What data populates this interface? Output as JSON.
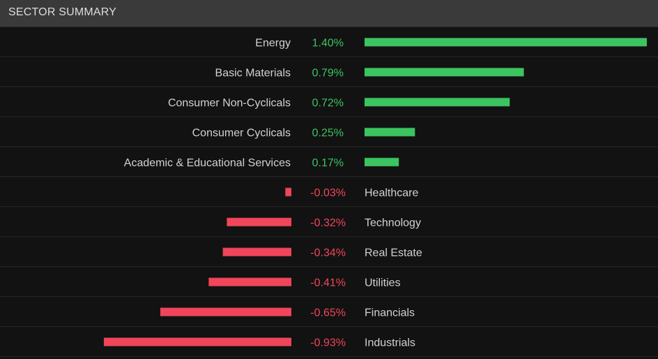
{
  "header": {
    "title": "SECTOR SUMMARY"
  },
  "colors": {
    "positive": "#3cc460",
    "negative": "#f0455a"
  },
  "chart_data": {
    "type": "bar",
    "orientation": "horizontal",
    "title": "SECTOR SUMMARY",
    "categories": [
      "Energy",
      "Basic Materials",
      "Consumer Non-Cyclicals",
      "Consumer Cyclicals",
      "Academic & Educational Services",
      "Healthcare",
      "Technology",
      "Real Estate",
      "Utilities",
      "Financials",
      "Industrials"
    ],
    "values": [
      1.4,
      0.79,
      0.72,
      0.25,
      0.17,
      -0.03,
      -0.32,
      -0.34,
      -0.41,
      -0.65,
      -0.93
    ],
    "value_labels": [
      "1.40%",
      "0.79%",
      "0.72%",
      "0.25%",
      "0.17%",
      "-0.03%",
      "-0.32%",
      "-0.34%",
      "-0.41%",
      "-0.65%",
      "-0.93%"
    ],
    "unit": "%",
    "max_abs": 1.4
  }
}
